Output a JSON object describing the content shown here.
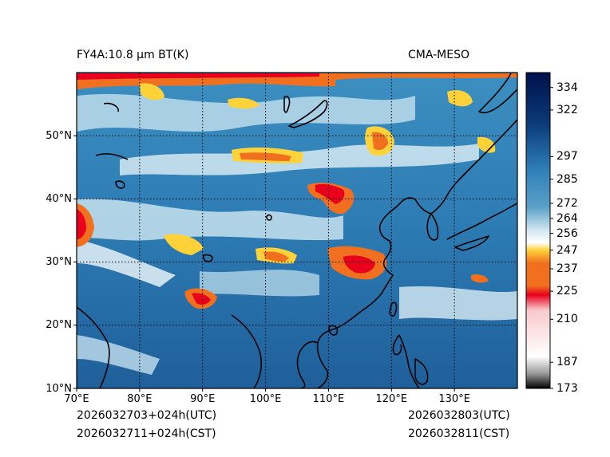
{
  "header": {
    "title_left": "FY4A:10.8 µm BT(K)",
    "title_right": "CMA-MESO"
  },
  "footer": {
    "init_utc": "2026032703+024h(UTC)",
    "init_cst": "2026032711+024h(CST)",
    "valid_utc": "2026032803(UTC)",
    "valid_cst": "2026032811(CST)"
  },
  "map": {
    "lon_labels": [
      "70°E",
      "80°E",
      "90°E",
      "100°E",
      "110°E",
      "120°E",
      "130°E"
    ],
    "lon_values": [
      70,
      80,
      90,
      100,
      110,
      120,
      130
    ],
    "lat_labels": [
      "10°N",
      "20°N",
      "30°N",
      "40°N",
      "50°N"
    ],
    "lat_values": [
      10,
      20,
      30,
      40,
      50
    ],
    "lon_range": [
      70,
      140
    ],
    "lat_range": [
      10,
      60
    ]
  },
  "colorbar": {
    "tick_labels": [
      "334",
      "322",
      "297",
      "285",
      "272",
      "264",
      "256",
      "247",
      "237",
      "225",
      "210",
      "187",
      "173"
    ],
    "tick_values": [
      334,
      322,
      297,
      285,
      272,
      264,
      256,
      247,
      237,
      225,
      210,
      187,
      173
    ],
    "colors": {
      "deep_navy": "#00104a",
      "navy": "#0a3a78",
      "ocean_blue": "#2f7fb8",
      "mid_blue": "#5aa1c8",
      "pale_blue": "#cfe5f0",
      "white": "#ffffff",
      "yellow": "#ffd23a",
      "orange": "#f07020",
      "red": "#e8001c",
      "pink": "#f8c8cc",
      "gray": "#9a9a9a",
      "black": "#000000"
    }
  }
}
